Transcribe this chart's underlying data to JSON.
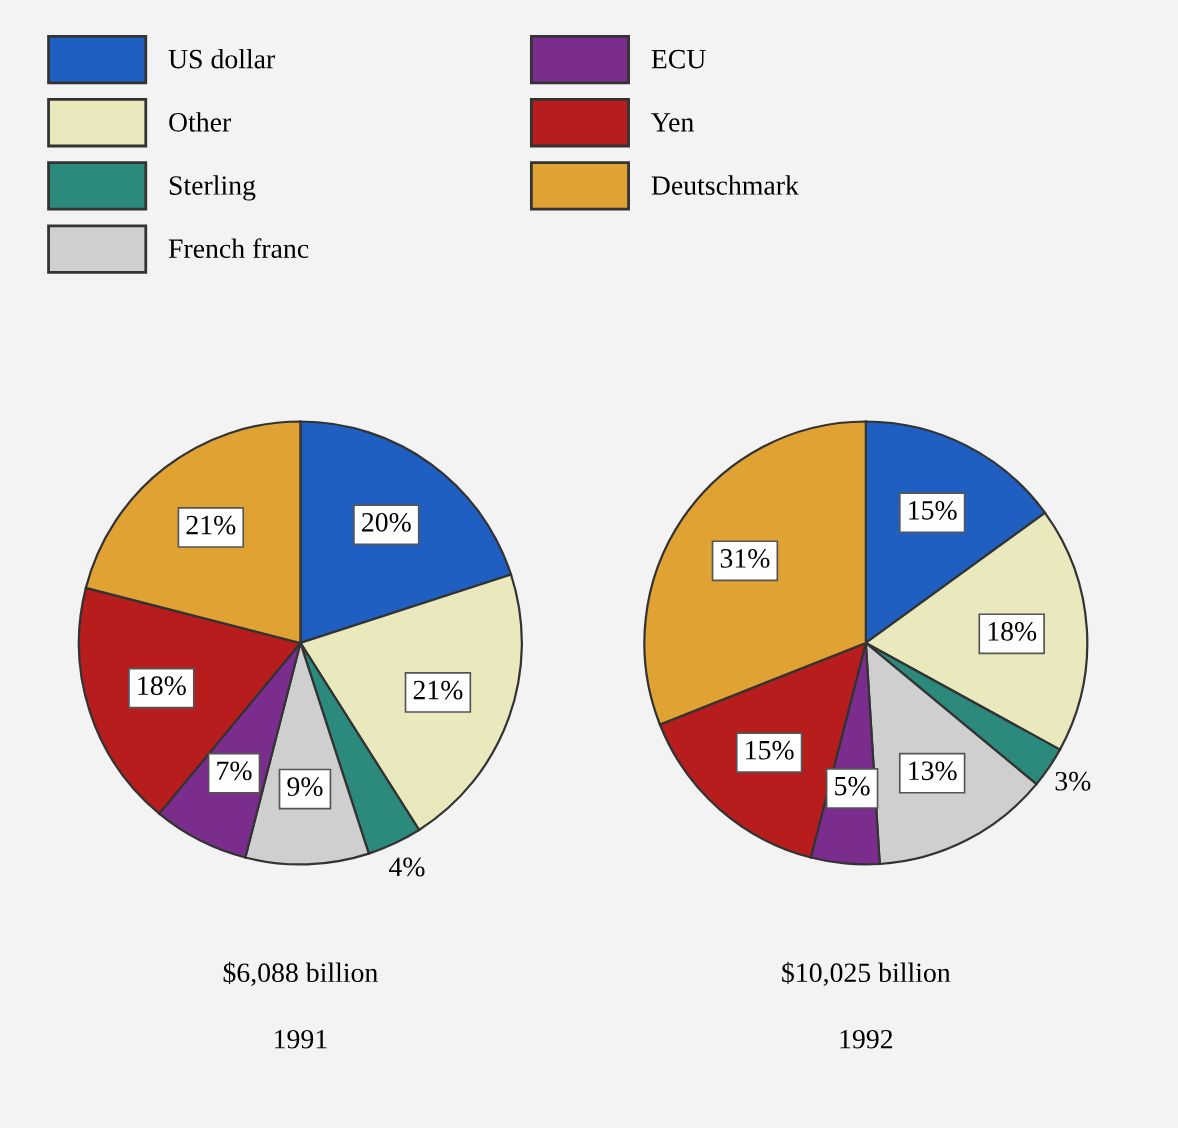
{
  "chart_data": [
    {
      "type": "pie",
      "title": "1991",
      "xlabel": "$6,088 billion",
      "categories": [
        "US dollar",
        "Other",
        "Sterling",
        "French franc",
        "ECU",
        "Yen",
        "Deutschmark"
      ],
      "values": [
        20,
        21,
        4,
        9,
        7,
        18,
        21
      ],
      "value_labels": [
        "20%",
        "21%",
        "4%",
        "9%",
        "7%",
        "18%",
        "21%"
      ],
      "colors": [
        "#1f5fc2",
        "#e9e9bd",
        "#2b8a7c",
        "#cfcfcf",
        "#7b2d8e",
        "#b81d1d",
        "#e0a232"
      ],
      "legend": "top"
    },
    {
      "type": "pie",
      "title": "1992",
      "xlabel": "$10,025 billion",
      "categories": [
        null,
        null,
        null,
        null,
        null,
        null,
        null
      ],
      "values": [
        15,
        18,
        3,
        13,
        5,
        15,
        31
      ],
      "value_labels": [
        "15%",
        "18%",
        "3%",
        "13%",
        "5%",
        "15%",
        "31%"
      ],
      "colors": [
        "#1f5fc2",
        "#e9e9bd",
        "#2b8a7c",
        "#cfcfcf",
        "#7b2d8e",
        "#b81d1d",
        "#e0a232"
      ]
    }
  ]
}
